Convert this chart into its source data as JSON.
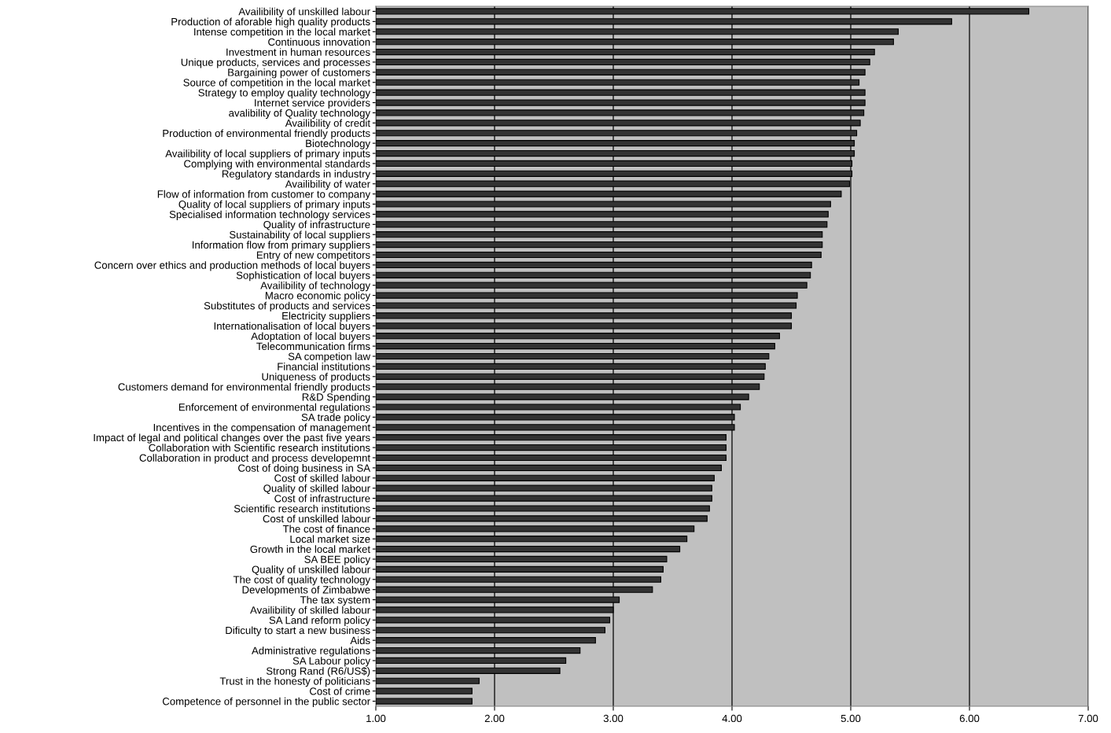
{
  "chart_data": {
    "type": "bar",
    "orientation": "horizontal",
    "categories": [
      "Availibility of unskilled labour",
      "Production of aforable high quality products",
      "Intense competition in the local market",
      "Continuous innovation",
      "Investment in human resources",
      "Unique products, services and processes",
      "Bargaining power of customers",
      "Source of competition in the local market",
      "Strategy to employ quality technology",
      "Internet service providers",
      "avalibility of Quality technology",
      "Availibility of credit",
      "Production of environmental friendly products",
      "Biotechnology",
      "Availibility of local suppliers of primary inputs",
      "Complying with environmental standards",
      "Regulatory standards in industry",
      "Availibility of water",
      "Flow of information from customer to company",
      "Quality of local suppliers of primary inputs",
      "Specialised information technology services",
      "Quality of infrastructure",
      "Sustainability of local suppliers",
      "Information flow from primary suppliers",
      "Entry of new competitors",
      "Concern over ethics and production methods of local buyers",
      "Sophistication of local buyers",
      "Availibility of technology",
      "Macro economic policy",
      "Substitutes of products and services",
      "Electricity suppliers",
      "Internationalisation of local buyers",
      "Adoptation of local buyers",
      "Telecommunication firms",
      "SA competion law",
      "Financial institutions",
      "Uniqueness of products",
      "Customers demand for environmental friendly products",
      "R&D Spending",
      "Enforcement of environmental regulations",
      "SA trade policy",
      "Incentives in the compensation of management",
      "Impact of legal and political changes over the past five years",
      "Collaboration with Scientific research institutions",
      "Collaboration in product and process developemnt",
      "Cost of doing business in SA",
      "Cost of skilled labour",
      "Quality of skilled labour",
      "Cost of infrastructure",
      "Scientific research institutions",
      "Cost of unskilled labour",
      "The cost of finance",
      "Local market size",
      "Growth in the local market",
      "SA BEE policy",
      "Quality of unskilled labour",
      "The cost of quality technology",
      "Developments of Zimbabwe",
      "The tax system",
      "Availibility of skilled labour",
      "SA Land reform policy",
      "Dificulty to start a new business",
      "Aids",
      "Administrative regulations",
      "SA Labour policy",
      "Strong Rand (R6/US$)",
      "Trust in the honesty of politicians",
      "Cost of crime",
      "Competence of personnel in the public sector"
    ],
    "values": [
      6.5,
      5.85,
      5.4,
      5.36,
      5.2,
      5.16,
      5.12,
      5.07,
      5.12,
      5.12,
      5.11,
      5.08,
      5.05,
      5.03,
      5.03,
      5.01,
      5.01,
      4.99,
      4.92,
      4.83,
      4.81,
      4.8,
      4.76,
      4.76,
      4.75,
      4.67,
      4.66,
      4.63,
      4.55,
      4.54,
      4.5,
      4.5,
      4.4,
      4.36,
      4.31,
      4.28,
      4.27,
      4.23,
      4.14,
      4.07,
      4.02,
      4.02,
      3.95,
      3.95,
      3.95,
      3.91,
      3.85,
      3.83,
      3.83,
      3.81,
      3.79,
      3.68,
      3.62,
      3.56,
      3.45,
      3.42,
      3.4,
      3.33,
      3.05,
      3.0,
      2.97,
      2.93,
      2.85,
      2.72,
      2.6,
      2.55,
      1.87,
      1.81,
      1.81
    ],
    "color": "#333333",
    "xlim": [
      1,
      7
    ],
    "xticks": [
      {
        "value": 1,
        "label": "1.00"
      },
      {
        "value": 2,
        "label": "2.00"
      },
      {
        "value": 3,
        "label": "3.00"
      },
      {
        "value": 4,
        "label": "4.00"
      },
      {
        "value": 5,
        "label": "5.00"
      },
      {
        "value": 6,
        "label": "6.00"
      },
      {
        "value": 7,
        "label": "7.00"
      }
    ],
    "grid": "x"
  }
}
